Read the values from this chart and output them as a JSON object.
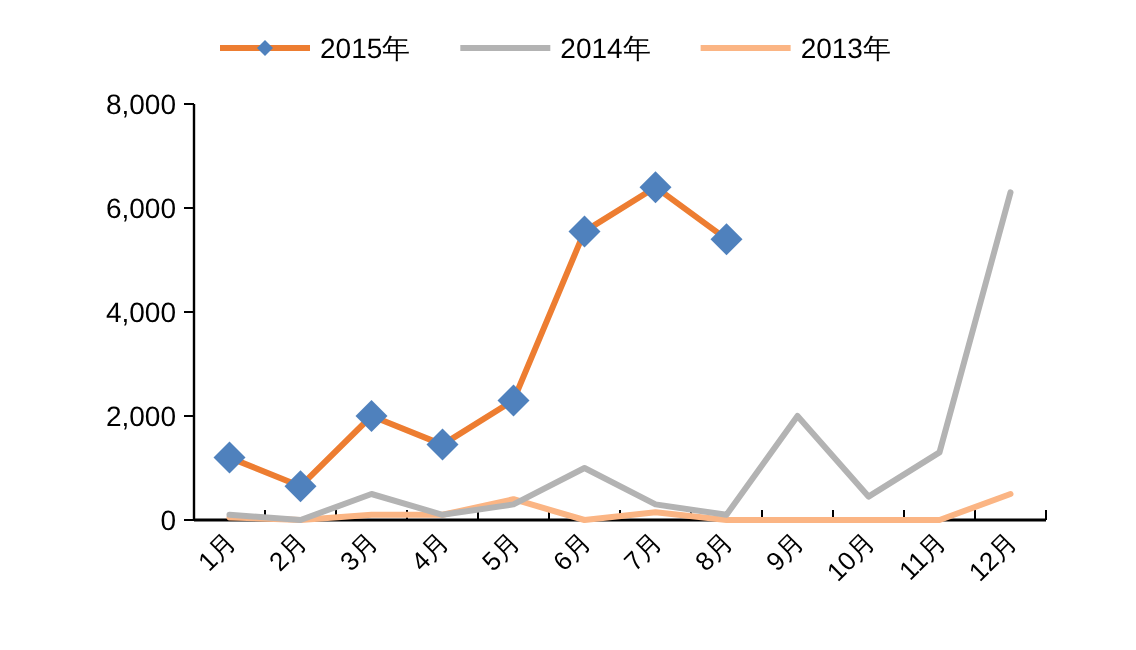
{
  "chart_data": {
    "type": "line",
    "categories": [
      "1月",
      "2月",
      "3月",
      "4月",
      "5月",
      "6月",
      "7月",
      "8月",
      "9月",
      "10月",
      "11月",
      "12月"
    ],
    "series": [
      {
        "name": "2015年",
        "color": "#ed7d31",
        "marker": "diamond",
        "colors": [
          "#4f81bd",
          "#4f81bd",
          "#4f81bd",
          "#4f81bd",
          "#4f81bd",
          "#4f81bd",
          "#4f81bd",
          "#4f81bd",
          null,
          null,
          null,
          null
        ],
        "values": [
          1200,
          650,
          2000,
          1450,
          2300,
          5550,
          6400,
          5400,
          null,
          null,
          null,
          null
        ]
      },
      {
        "name": "2014年",
        "color": "#b3b3b3",
        "marker": "none",
        "values": [
          100,
          0,
          500,
          100,
          300,
          1000,
          300,
          100,
          2000,
          450,
          1300,
          6300
        ]
      },
      {
        "name": "2013年",
        "color": "#fbb584",
        "marker": "none",
        "values": [
          50,
          0,
          100,
          100,
          400,
          0,
          150,
          0,
          0,
          0,
          0,
          500
        ]
      }
    ],
    "ylim": [
      0,
      8000
    ],
    "yticks": [
      {
        "value": 0,
        "label": "0"
      },
      {
        "value": 2000,
        "label": "2,000"
      },
      {
        "value": 4000,
        "label": "4,000"
      },
      {
        "value": 6000,
        "label": "6,000"
      },
      {
        "value": 8000,
        "label": "8,000"
      }
    ],
    "grid": false,
    "legend": "top"
  }
}
